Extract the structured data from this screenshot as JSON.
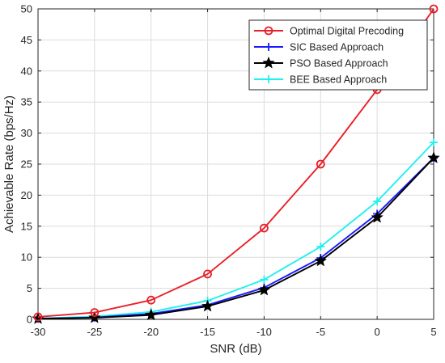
{
  "chart_data": {
    "type": "line",
    "xlabel": "SNR (dB)",
    "ylabel": "Achievable Rate (bps/Hz)",
    "x": [
      -30,
      -25,
      -20,
      -15,
      -10,
      -5,
      0,
      5
    ],
    "xlim": [
      -30,
      5
    ],
    "ylim": [
      0,
      50
    ],
    "xticks": [
      -30,
      -25,
      -20,
      -15,
      -10,
      -5,
      0,
      5
    ],
    "yticks": [
      0,
      5,
      10,
      15,
      20,
      25,
      30,
      35,
      40,
      45,
      50
    ],
    "grid": true,
    "legend_position": "top-right",
    "series": [
      {
        "name": "Optimal Digital Precoding",
        "color": "#e8202a",
        "marker": "circle",
        "values": [
          0.4,
          1.1,
          3.1,
          7.3,
          14.7,
          25.0,
          37.0,
          50.0
        ]
      },
      {
        "name": "SIC Based Approach",
        "color": "#1a1aff",
        "marker": "plus",
        "values": [
          0.1,
          0.3,
          0.9,
          2.3,
          5.1,
          9.9,
          17.0,
          26.0
        ]
      },
      {
        "name": "PSO Based Approach",
        "color": "#000000",
        "marker": "star",
        "values": [
          0.1,
          0.25,
          0.7,
          2.1,
          4.7,
          9.4,
          16.4,
          26.0
        ]
      },
      {
        "name": "BEE Based Approach",
        "color": "#22f0f0",
        "marker": "plus",
        "values": [
          0.15,
          0.45,
          1.2,
          3.0,
          6.4,
          11.7,
          19.0,
          28.5
        ]
      }
    ]
  }
}
